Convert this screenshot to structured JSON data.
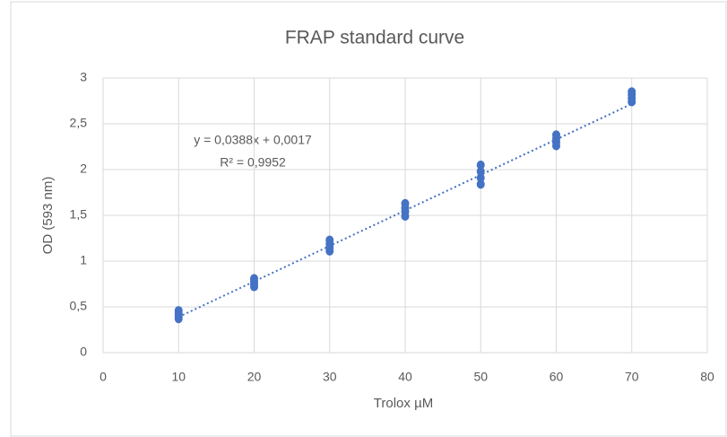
{
  "chart_data": {
    "type": "scatter",
    "title": "FRAP standard curve",
    "x_label": "Trolox µM",
    "y_label": "OD (593 nm)",
    "annotations": [
      "y = 0,0388x + 0,0017",
      "R² = 0,9952"
    ],
    "x": [
      10,
      10,
      10,
      10,
      20,
      20,
      20,
      20,
      30,
      30,
      30,
      30,
      40,
      40,
      40,
      40,
      50,
      50,
      50,
      50,
      60,
      60,
      60,
      60,
      70,
      70,
      70,
      70
    ],
    "values": [
      0.37,
      0.4,
      0.43,
      0.46,
      0.72,
      0.75,
      0.78,
      0.81,
      1.11,
      1.15,
      1.19,
      1.23,
      1.49,
      1.54,
      1.58,
      1.63,
      1.84,
      1.91,
      1.98,
      2.05,
      2.26,
      2.3,
      2.34,
      2.38,
      2.74,
      2.78,
      2.82,
      2.85
    ],
    "color": "#4472c4",
    "trendline": {
      "x": [
        10,
        70
      ],
      "values": [
        0.3897,
        2.7177
      ],
      "color": "#4472c4"
    },
    "xlim": [
      0,
      80
    ],
    "xticks": [
      0,
      10,
      20,
      30,
      40,
      50,
      60,
      70,
      80
    ],
    "ylim": [
      0,
      3
    ],
    "yticks": [
      0,
      {
        "value": 0.5,
        "label": "0,5"
      },
      1,
      {
        "value": 1.5,
        "label": "1,5"
      },
      2,
      {
        "value": 2.5,
        "label": "2,5"
      },
      3
    ],
    "grid": true
  }
}
